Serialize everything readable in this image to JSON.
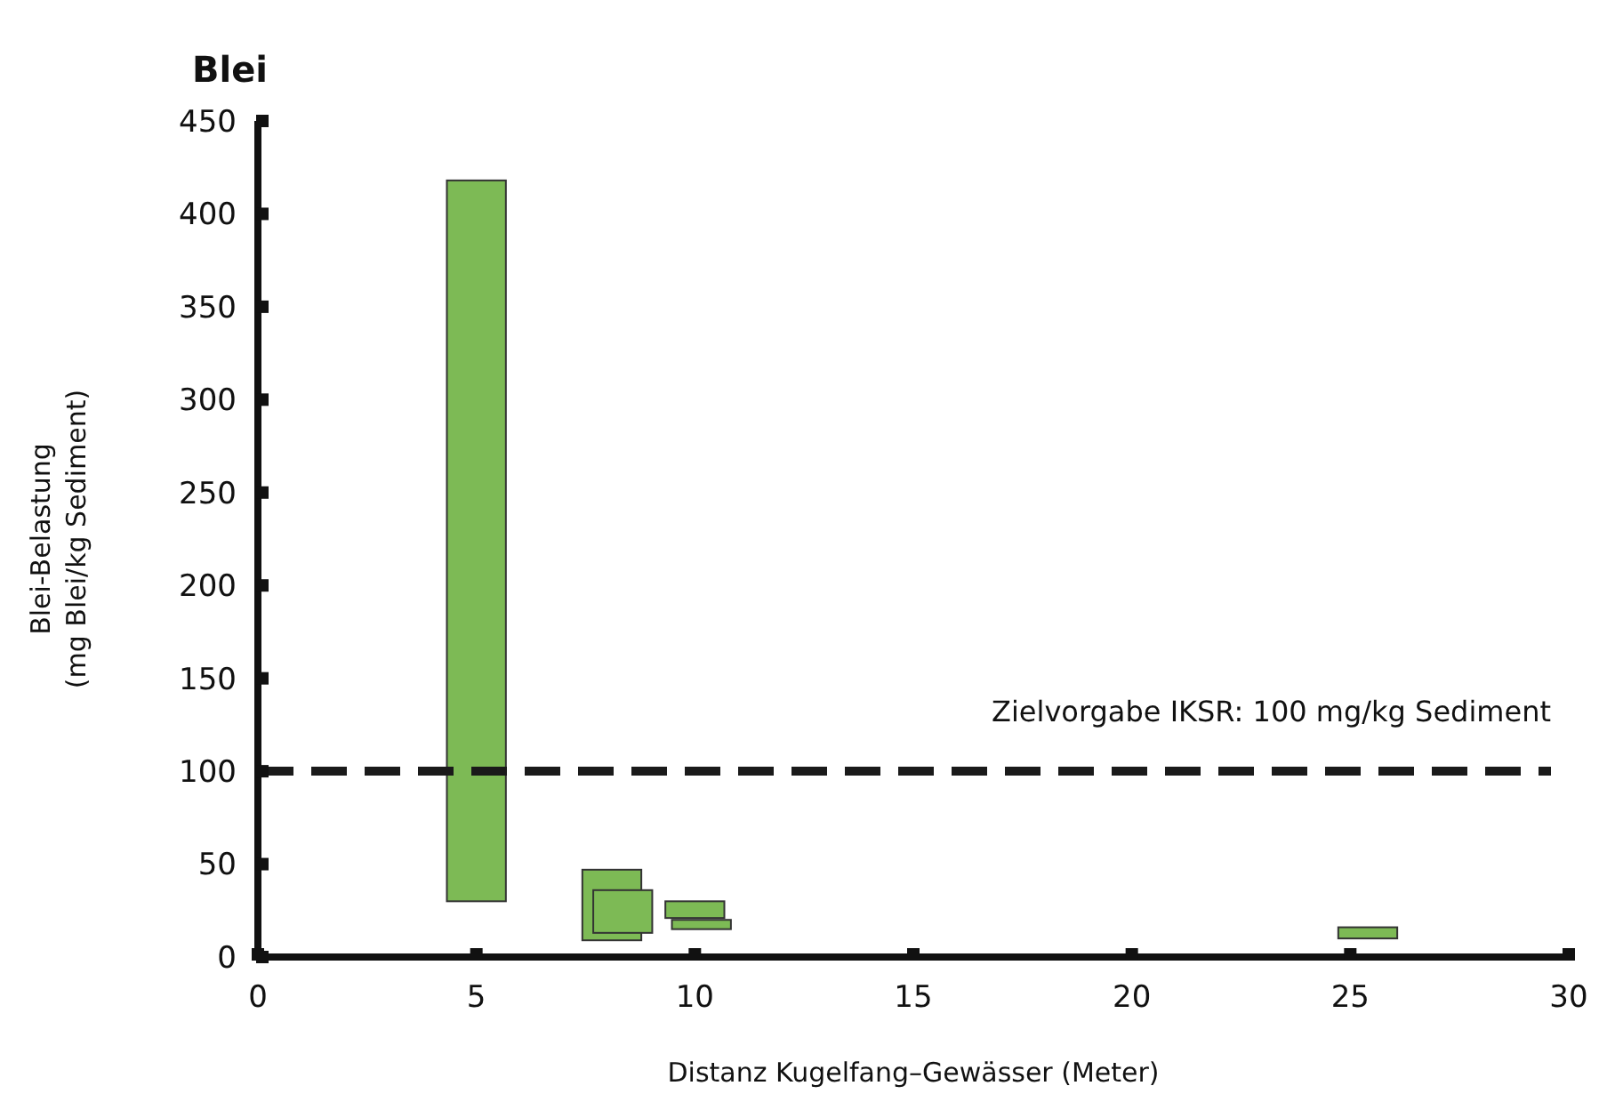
{
  "chart_data": {
    "type": "bar",
    "title": "Blei",
    "xlabel": "Distanz Kugelfang–Gewässer (Meter)",
    "ylabel": "Blei-Belastung\n(mg Blei/kg Sediment)",
    "x": [
      5.0,
      8.1,
      8.35,
      10.0,
      10.15,
      25.4
    ],
    "base": [
      30,
      9,
      13,
      21,
      15,
      10
    ],
    "values": [
      388,
      38,
      23,
      9,
      5,
      6
    ],
    "color": "#7dba55",
    "xlim": [
      0,
      30
    ],
    "xticks": [
      0,
      5,
      10,
      15,
      20,
      25,
      30
    ],
    "ylim": [
      0,
      450
    ],
    "yticks": [
      0,
      50,
      100,
      150,
      200,
      250,
      300,
      350,
      400,
      450
    ],
    "ref_lines": [
      {
        "axis": "y",
        "value": 100,
        "label": "Zielvorgabe IKSR: 100 mg/kg Sediment",
        "color": "#1a1a1a",
        "line_style": "dashed"
      }
    ]
  }
}
